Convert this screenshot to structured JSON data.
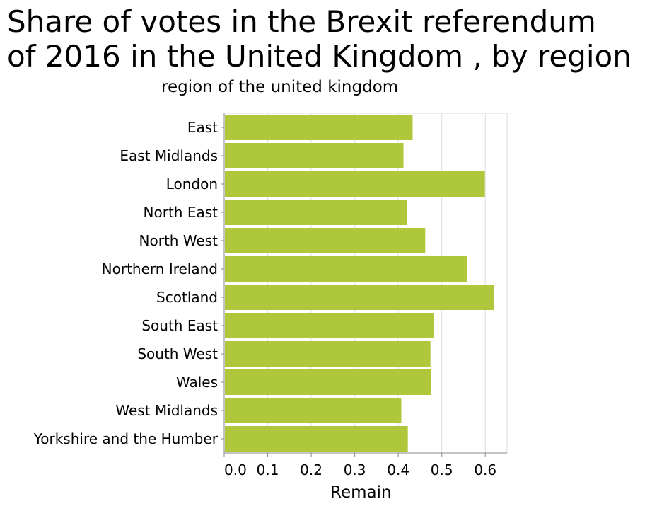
{
  "chart_data": {
    "type": "bar",
    "orientation": "horizontal",
    "title": "Share of votes in the Brexit referendum\nof 2016 in the United Kingdom , by region",
    "ylabel": "region of the united kingdom",
    "xlabel": "Remain",
    "categories": [
      "East",
      "East Midlands",
      "London",
      "North East",
      "North West",
      "Northern Ireland",
      "Scotland",
      "South East",
      "South West",
      "Wales",
      "West Midlands",
      "Yorkshire and the Humber"
    ],
    "values": [
      0.433,
      0.412,
      0.599,
      0.42,
      0.462,
      0.558,
      0.62,
      0.482,
      0.474,
      0.475,
      0.407,
      0.422
    ],
    "xlim": [
      0,
      0.65
    ],
    "xticks": [
      0,
      0.1,
      0.2,
      0.3,
      0.4,
      0.5,
      0.6
    ],
    "xtick_labels": [
      "0.0",
      "0.1",
      "0.2",
      "0.3",
      "0.4",
      "0.5",
      "0.6"
    ],
    "grid": true,
    "bar_color": "#afc73a",
    "grid_color": "#dddddd",
    "axis_color": "#888888"
  }
}
